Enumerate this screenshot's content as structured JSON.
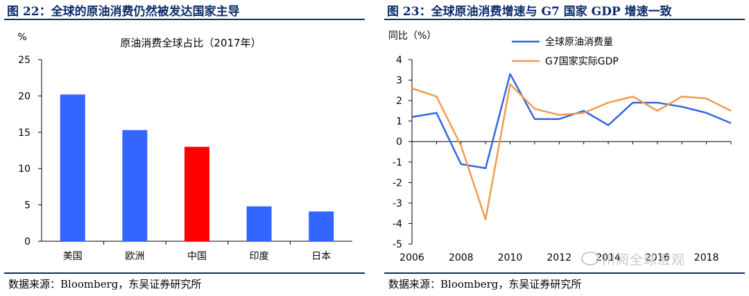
{
  "left": {
    "fig_title": "图 22：全球的原油消费仍然被发达国家主导",
    "source": "数据来源：Bloomberg，东吴证券研究所",
    "chart_data": {
      "type": "bar",
      "title": "原油消费全球占比（2017年）",
      "ylabel": "%",
      "ylim": [
        0,
        25
      ],
      "yticks": [
        0,
        5,
        10,
        15,
        20,
        25
      ],
      "categories": [
        "美国",
        "欧洲",
        "中国",
        "印度",
        "日本"
      ],
      "values": [
        20.2,
        15.3,
        13.0,
        4.8,
        4.1
      ],
      "bar_colors": [
        "#3366ff",
        "#3366ff",
        "#ff0000",
        "#3366ff",
        "#3366ff"
      ],
      "grid": false
    }
  },
  "right": {
    "fig_title": "图 23：全球原油消费增速与 G7 国家 GDP 增速一致",
    "source": "数据来源：Bloomberg，东吴证券研究所",
    "watermark": "川阅全球宏观",
    "chart_data": {
      "type": "line",
      "ylabel": "同比（%）",
      "ylim": [
        -5,
        4
      ],
      "yticks": [
        -5,
        -4,
        -3,
        -2,
        -1,
        0,
        1,
        2,
        3,
        4
      ],
      "xlim": [
        2006,
        2019
      ],
      "xticks": [
        2006,
        2008,
        2010,
        2012,
        2014,
        2016,
        2018
      ],
      "legend_position": "top-left",
      "grid": false,
      "series": [
        {
          "name": "全球原油消费量",
          "color": "#3366dd",
          "x": [
            2006,
            2007,
            2008,
            2009,
            2010,
            2011,
            2012,
            2013,
            2014,
            2015,
            2016,
            2017,
            2018,
            2019
          ],
          "y": [
            1.2,
            1.4,
            -1.1,
            -1.3,
            3.3,
            1.1,
            1.1,
            1.5,
            0.8,
            1.9,
            1.9,
            1.7,
            1.4,
            0.9
          ]
        },
        {
          "name": "G7国家实际GDP",
          "color": "#f39a4b",
          "x": [
            2006,
            2007,
            2008,
            2009,
            2010,
            2011,
            2012,
            2013,
            2014,
            2015,
            2016,
            2017,
            2018,
            2019
          ],
          "y": [
            2.6,
            2.2,
            -0.2,
            -3.8,
            2.8,
            1.6,
            1.3,
            1.4,
            1.9,
            2.2,
            1.5,
            2.2,
            2.1,
            1.5
          ]
        }
      ]
    }
  }
}
